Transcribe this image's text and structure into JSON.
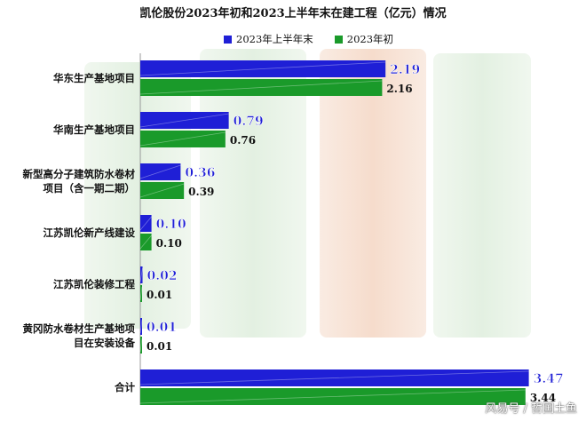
{
  "title": "凯伦股份2023年初和2023上半年末在建工程（亿元）情况",
  "watermark": "风易号 / 哲国土鱼",
  "colors": {
    "mid_2023": "#1f1fd6",
    "start_2023": "#1a9a2a"
  },
  "chart_data": {
    "type": "bar",
    "orientation": "horizontal",
    "categories": [
      [
        "华东生产基地项目"
      ],
      [
        "华南生产基地项目"
      ],
      [
        "新型高分子建筑防水卷材",
        "项目（含一期二期）"
      ],
      [
        "江苏凯伦新产线建设"
      ],
      [
        "江苏凯伦装修工程"
      ],
      [
        "黄冈防水卷材生产基地项",
        "目在安装设备"
      ],
      [
        "合计"
      ]
    ],
    "series": [
      {
        "name": "2023年上半年末",
        "values": [
          2.19,
          0.79,
          0.36,
          0.1,
          0.02,
          0.01,
          3.47
        ]
      },
      {
        "name": "2023年初",
        "values": [
          2.16,
          0.76,
          0.39,
          0.1,
          0.01,
          0.01,
          3.44
        ]
      }
    ],
    "xlim": [
      0,
      3.6
    ],
    "legend_position": "top-center"
  }
}
